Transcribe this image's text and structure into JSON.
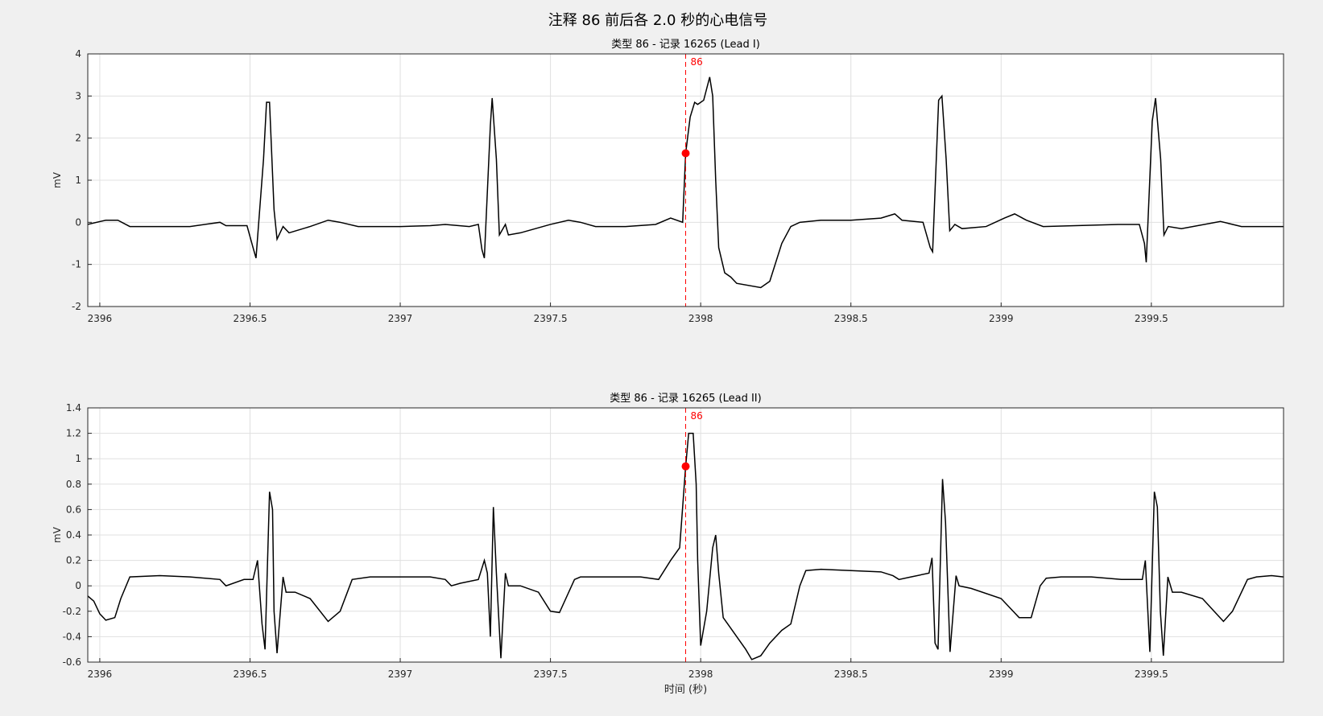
{
  "suptitle": "注释 86 前后各 2.0 秒的心电信号",
  "chart_data": [
    {
      "type": "line",
      "title": "类型 86  - 记录 16265  (Lead I)",
      "ylabel": "mV",
      "color": "#000000",
      "grid": true,
      "xlim": [
        2395.96,
        2399.94
      ],
      "ylim": [
        -2,
        4
      ],
      "xticks": [
        2396,
        2396.5,
        2397,
        2397.5,
        2398,
        2398.5,
        2399,
        2399.5
      ],
      "yticks": [
        -2,
        -1,
        0,
        1,
        2,
        3,
        4
      ],
      "x": [
        2395.96,
        2396.02,
        2396.06,
        2396.1,
        2396.2,
        2396.3,
        2396.4,
        2396.42,
        2396.49,
        2396.51,
        2396.52,
        2396.545,
        2396.555,
        2396.565,
        2396.58,
        2396.59,
        2396.61,
        2396.63,
        2396.7,
        2396.76,
        2396.8,
        2396.86,
        2397.0,
        2397.1,
        2397.15,
        2397.23,
        2397.26,
        2397.272,
        2397.28,
        2397.3,
        2397.306,
        2397.32,
        2397.33,
        2397.35,
        2397.36,
        2397.4,
        2397.5,
        2397.56,
        2397.6,
        2397.65,
        2397.75,
        2397.85,
        2397.9,
        2397.94,
        2397.95,
        2397.965,
        2397.98,
        2397.99,
        2398.01,
        2398.03,
        2398.04,
        2398.05,
        2398.06,
        2398.08,
        2398.1,
        2398.12,
        2398.2,
        2398.23,
        2398.27,
        2398.3,
        2398.33,
        2398.4,
        2398.5,
        2398.6,
        2398.646,
        2398.67,
        2398.74,
        2398.764,
        2398.772,
        2398.792,
        2398.803,
        2398.817,
        2398.829,
        2398.846,
        2398.87,
        2398.95,
        2399.011,
        2399.045,
        2399.084,
        2399.14,
        2399.39,
        2399.46,
        2399.477,
        2399.483,
        2399.503,
        2399.514,
        2399.531,
        2399.542,
        2399.556,
        2399.6,
        2399.73,
        2399.8,
        2399.94
      ],
      "values": [
        -0.05,
        0.05,
        0.05,
        -0.1,
        -0.1,
        -0.1,
        0.0,
        -0.08,
        -0.08,
        -0.6,
        -0.85,
        1.5,
        2.85,
        2.85,
        0.3,
        -0.4,
        -0.1,
        -0.25,
        -0.1,
        0.05,
        0.0,
        -0.1,
        -0.1,
        -0.08,
        -0.05,
        -0.1,
        -0.05,
        -0.65,
        -0.85,
        2.3,
        2.95,
        1.5,
        -0.3,
        -0.05,
        -0.3,
        -0.25,
        -0.05,
        0.05,
        0.0,
        -0.1,
        -0.1,
        -0.05,
        0.1,
        0.0,
        1.64,
        2.5,
        2.85,
        2.8,
        2.9,
        3.45,
        3.0,
        1.0,
        -0.6,
        -1.2,
        -1.3,
        -1.45,
        -1.55,
        -1.4,
        -0.5,
        -0.1,
        0.0,
        0.05,
        0.05,
        0.1,
        0.2,
        0.05,
        0.0,
        -0.6,
        -0.7,
        2.9,
        3.0,
        1.5,
        -0.2,
        -0.05,
        -0.15,
        -0.1,
        0.1,
        0.2,
        0.05,
        -0.1,
        -0.05,
        -0.05,
        -0.5,
        -0.95,
        2.4,
        2.95,
        1.5,
        -0.3,
        -0.1,
        -0.15,
        0.02,
        -0.1,
        -0.1
      ],
      "annotation": {
        "x": 2397.95,
        "y": 1.64,
        "label": "86",
        "color": "#ff0000"
      }
    },
    {
      "type": "line",
      "title": "类型 86  - 记录 16265  (Lead II)",
      "ylabel": "mV",
      "xlabel": "时间 (秒)",
      "color": "#000000",
      "grid": true,
      "xlim": [
        2395.96,
        2399.94
      ],
      "ylim": [
        -0.6,
        1.4
      ],
      "xticks": [
        2396,
        2396.5,
        2397,
        2397.5,
        2398,
        2398.5,
        2399,
        2399.5
      ],
      "yticks": [
        -0.6,
        -0.4,
        -0.2,
        0,
        0.2,
        0.4,
        0.6,
        0.8,
        1,
        1.2,
        1.4
      ],
      "x": [
        2395.96,
        2395.98,
        2396.0,
        2396.02,
        2396.05,
        2396.07,
        2396.1,
        2396.2,
        2396.3,
        2396.4,
        2396.42,
        2396.48,
        2396.51,
        2396.525,
        2396.54,
        2396.55,
        2396.565,
        2396.575,
        2396.58,
        2396.59,
        2396.61,
        2396.62,
        2396.65,
        2396.7,
        2396.76,
        2396.8,
        2396.84,
        2396.9,
        2397.0,
        2397.1,
        2397.15,
        2397.17,
        2397.2,
        2397.26,
        2397.28,
        2397.29,
        2397.3,
        2397.31,
        2397.32,
        2397.335,
        2397.35,
        2397.36,
        2397.4,
        2397.46,
        2397.5,
        2397.53,
        2397.58,
        2397.6,
        2397.7,
        2397.8,
        2397.86,
        2397.9,
        2397.93,
        2397.95,
        2397.96,
        2397.975,
        2397.985,
        2397.99,
        2398.0,
        2398.02,
        2398.04,
        2398.05,
        2398.06,
        2398.075,
        2398.09,
        2398.15,
        2398.17,
        2398.2,
        2398.23,
        2398.27,
        2398.3,
        2398.33,
        2398.35,
        2398.4,
        2398.5,
        2398.6,
        2398.64,
        2398.66,
        2398.7,
        2398.76,
        2398.77,
        2398.78,
        2398.79,
        2398.805,
        2398.815,
        2398.83,
        2398.85,
        2398.86,
        2398.9,
        2399.0,
        2399.06,
        2399.1,
        2399.13,
        2399.15,
        2399.2,
        2399.3,
        2399.4,
        2399.47,
        2399.48,
        2399.495,
        2399.51,
        2399.52,
        2399.53,
        2399.54,
        2399.555,
        2399.57,
        2399.6,
        2399.67,
        2399.74,
        2399.77,
        2399.82,
        2399.85,
        2399.9,
        2399.94
      ],
      "values": [
        -0.08,
        -0.12,
        -0.22,
        -0.27,
        -0.25,
        -0.1,
        0.07,
        0.08,
        0.07,
        0.05,
        0.0,
        0.05,
        0.05,
        0.2,
        -0.3,
        -0.5,
        0.74,
        0.6,
        -0.2,
        -0.53,
        0.07,
        -0.05,
        -0.05,
        -0.1,
        -0.28,
        -0.2,
        0.05,
        0.07,
        0.07,
        0.07,
        0.05,
        0.0,
        0.02,
        0.05,
        0.2,
        0.1,
        -0.4,
        0.62,
        0.1,
        -0.57,
        0.1,
        0.0,
        0.0,
        -0.05,
        -0.2,
        -0.21,
        0.05,
        0.07,
        0.07,
        0.07,
        0.05,
        0.2,
        0.3,
        0.94,
        1.2,
        1.2,
        0.8,
        0.2,
        -0.47,
        -0.2,
        0.3,
        0.4,
        0.1,
        -0.25,
        -0.3,
        -0.5,
        -0.58,
        -0.55,
        -0.45,
        -0.35,
        -0.3,
        0.0,
        0.12,
        0.13,
        0.12,
        0.11,
        0.08,
        0.05,
        0.07,
        0.1,
        0.22,
        -0.45,
        -0.5,
        0.84,
        0.5,
        -0.52,
        0.08,
        0.0,
        -0.02,
        -0.1,
        -0.25,
        -0.25,
        0.0,
        0.06,
        0.07,
        0.07,
        0.05,
        0.05,
        0.2,
        -0.52,
        0.74,
        0.62,
        -0.2,
        -0.55,
        0.07,
        -0.05,
        -0.05,
        -0.1,
        -0.28,
        -0.2,
        0.05,
        0.07,
        0.08,
        0.07
      ],
      "annotation": {
        "x": 2397.95,
        "y": 0.94,
        "label": "86",
        "color": "#ff0000"
      }
    }
  ]
}
